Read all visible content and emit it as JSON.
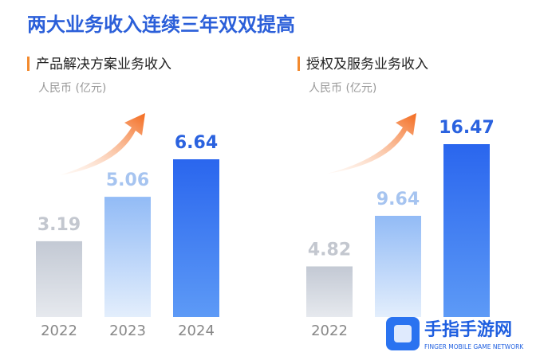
{
  "title": "两大业务收入连续三年双双提高",
  "chart_data": [
    {
      "type": "bar",
      "title": "产品解决方案业务收入",
      "subtitle": "人民币 (亿元)",
      "categories": [
        "2022",
        "2023",
        "2024"
      ],
      "values": [
        3.19,
        5.06,
        6.64
      ],
      "colors": [
        "#c9ced8",
        "#9fc3f6",
        "#2f6ff0"
      ],
      "label_colors": [
        "#c3c7cf",
        "#a6c4f0",
        "#2a62df"
      ]
    },
    {
      "type": "bar",
      "title": "授权及服务业务收入",
      "subtitle": "人民币 (亿元)",
      "categories": [
        "2022",
        null,
        null
      ],
      "values": [
        4.82,
        9.64,
        16.47
      ],
      "colors": [
        "#c9ced8",
        "#9fc3f6",
        "#2f6ff0"
      ],
      "label_colors": [
        "#c3c7cf",
        "#a6c4f0",
        "#2a62df"
      ]
    }
  ],
  "watermark": {
    "name": "手指手游网",
    "tagline": "FINGER MOBILE GAME NETWORK"
  }
}
